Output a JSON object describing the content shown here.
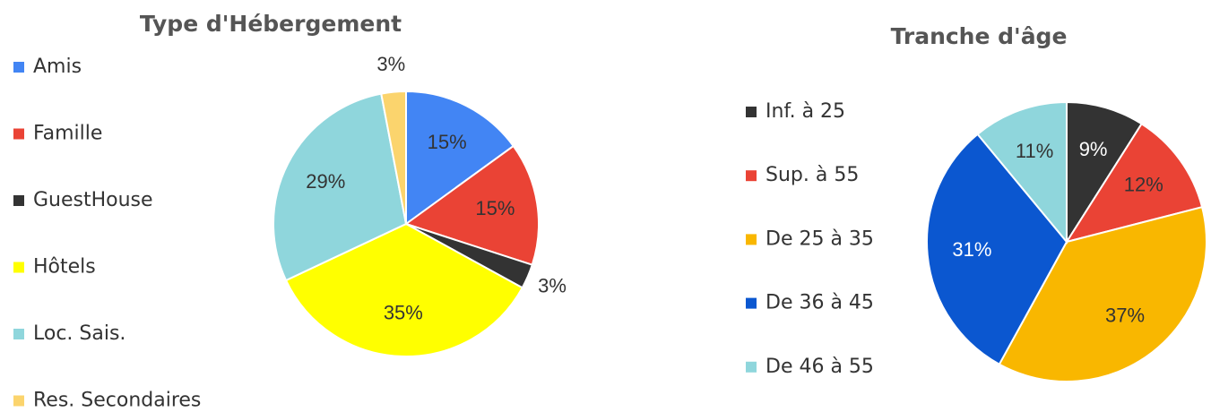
{
  "chart_data": [
    {
      "type": "pie",
      "title": "Type d'Hébergement",
      "categories": [
        "Amis",
        "Famille",
        "GuestHouse",
        "Hôtels",
        "Loc. Sais.",
        "Res. Secondaires"
      ],
      "values": [
        15,
        15,
        3,
        35,
        29,
        3
      ],
      "value_labels": [
        "15%",
        "15%",
        "3%",
        "35%",
        "29%",
        "3%"
      ],
      "colors": [
        "#4285f4",
        "#ea4335",
        "#333333",
        "#ffff00",
        "#8fd6dc",
        "#fbd46d"
      ],
      "legend": "left"
    },
    {
      "type": "pie",
      "title": "Tranche d'âge",
      "categories": [
        "Inf. à 25",
        "Sup. à 55",
        "De 25 à 35",
        "De 36 à 45",
        "De 46 à 55"
      ],
      "values": [
        9,
        12,
        37,
        31,
        11
      ],
      "value_labels": [
        "9%",
        "12%",
        "37%",
        "31%",
        "11%"
      ],
      "colors": [
        "#333333",
        "#ea4335",
        "#f9b700",
        "#0b57d0",
        "#8fd6dc"
      ],
      "legend": "left"
    }
  ]
}
